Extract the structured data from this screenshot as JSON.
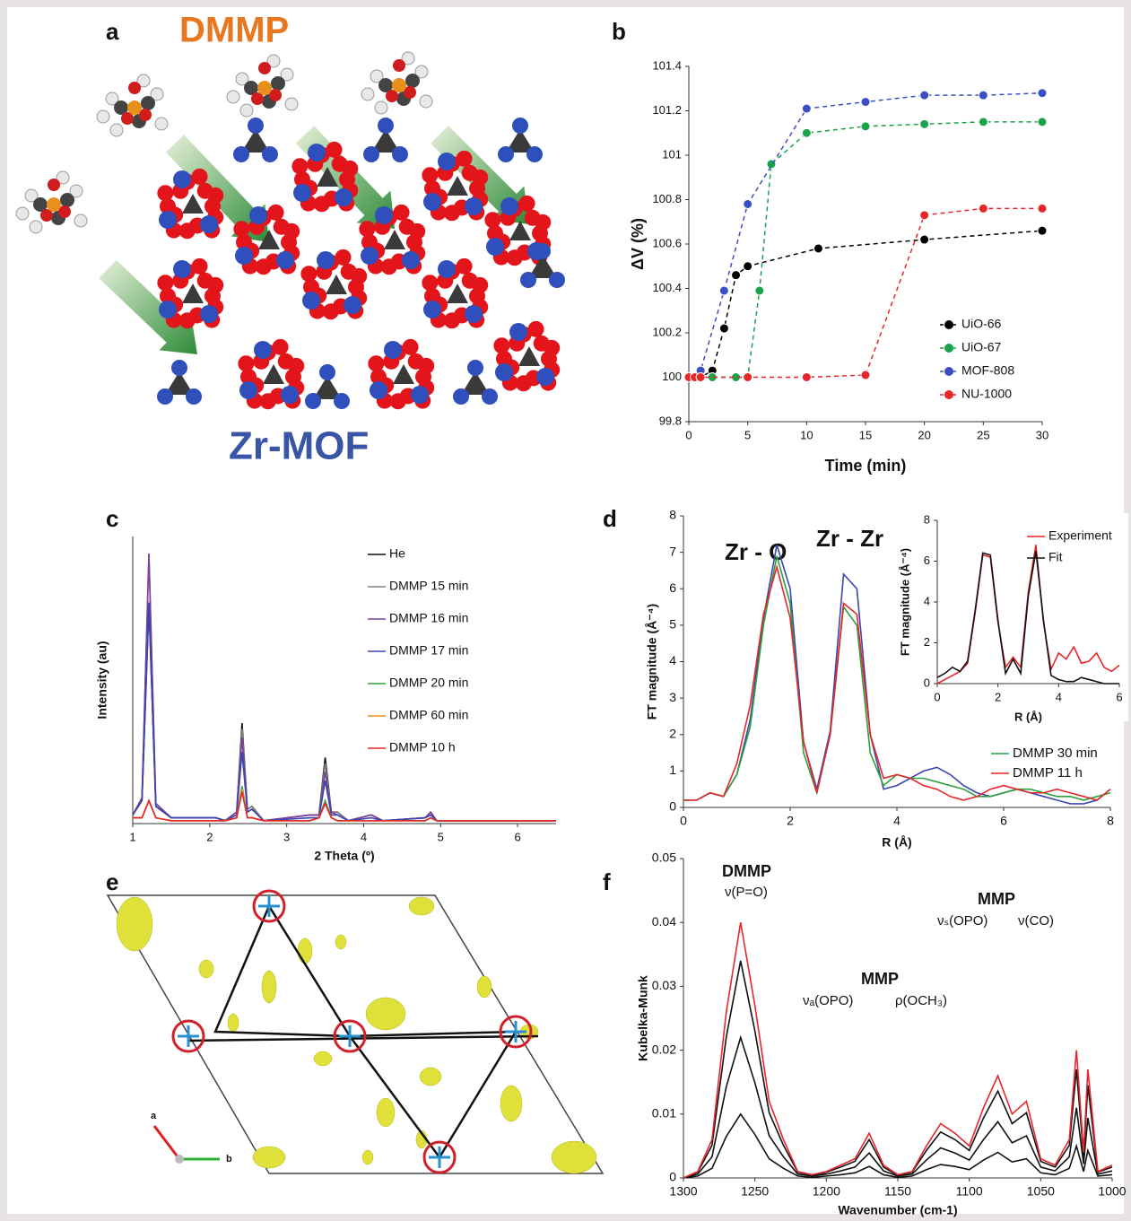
{
  "figure": {
    "a": {
      "label": "a",
      "molecule": "DMMP",
      "framework": "Zr-MOF"
    },
    "e": {
      "label": "e",
      "axis_a": "a",
      "axis_b": "b"
    }
  },
  "chart_data": [
    {
      "type": "line",
      "panel": "b",
      "xlabel": "Time (min)",
      "ylabel": "ΔV (%)",
      "markers": true,
      "dashed": true,
      "legend": "bottom-right",
      "xlim": [
        0,
        30
      ],
      "xticks": [
        0,
        5,
        10,
        15,
        20,
        25,
        30
      ],
      "ylim": [
        99.8,
        101.4
      ],
      "yticks": [
        99.8,
        100,
        100.2,
        100.4,
        100.6,
        100.8,
        101,
        101.2,
        101.4
      ],
      "series": [
        {
          "name": "UiO-66",
          "color": "#000000",
          "x": [
            0,
            1,
            2,
            3,
            4,
            5,
            11,
            20,
            30
          ],
          "values": [
            100,
            100,
            100.03,
            100.22,
            100.46,
            100.5,
            100.58,
            100.62,
            100.66
          ]
        },
        {
          "name": "UiO-67",
          "color": "#1aa34a",
          "x": [
            0,
            2,
            4,
            5,
            6,
            7,
            10,
            15,
            20,
            25,
            30
          ],
          "values": [
            100,
            100,
            100,
            100,
            100.39,
            100.96,
            101.1,
            101.13,
            101.14,
            101.15,
            101.15
          ]
        },
        {
          "name": "MOF-808",
          "color": "#3b4fc4",
          "x": [
            0,
            1,
            3,
            5,
            10,
            15,
            20,
            25,
            30
          ],
          "values": [
            100,
            100.03,
            100.39,
            100.78,
            101.21,
            101.24,
            101.27,
            101.27,
            101.28
          ]
        },
        {
          "name": "NU-1000",
          "color": "#e8262a",
          "x": [
            0,
            0.5,
            1,
            5,
            10,
            15,
            20,
            25,
            30
          ],
          "values": [
            100,
            100,
            100,
            100,
            100,
            100.01,
            100.73,
            100.76,
            100.76
          ]
        }
      ]
    },
    {
      "type": "line",
      "panel": "c",
      "xlabel": "2 Theta (º)",
      "ylabel": "Intensity (au)",
      "legend": "top-right",
      "xlim": [
        1,
        6.5
      ],
      "xticks": [
        1,
        2,
        3,
        4,
        5,
        6
      ],
      "ylim": [
        0,
        100
      ],
      "x": [
        1,
        1.12,
        1.21,
        1.3,
        1.5,
        2.08,
        2.2,
        2.35,
        2.42,
        2.49,
        2.55,
        2.7,
        3.3,
        3.42,
        3.5,
        3.58,
        3.66,
        3.8,
        4.1,
        4.25,
        4.8,
        4.87,
        4.95,
        5.5,
        6.5
      ],
      "series": [
        {
          "name": "He",
          "color": "#111111",
          "values": [
            3,
            8,
            76,
            6,
            2,
            2,
            1,
            4,
            35,
            5,
            6,
            1,
            3,
            3,
            23,
            4,
            4,
            1,
            3,
            1,
            2,
            4,
            1,
            1,
            1
          ]
        },
        {
          "name": "DMMP 15 min",
          "color": "#7f7f7f",
          "values": [
            3,
            9,
            94,
            7,
            2,
            2,
            1,
            4,
            33,
            5,
            6,
            1,
            3,
            3,
            21,
            4,
            4,
            1,
            3,
            1,
            2,
            4,
            1,
            1,
            1
          ]
        },
        {
          "name": "DMMP 16 min",
          "color": "#7b3f9e",
          "values": [
            3,
            9,
            94,
            7,
            2,
            2,
            1,
            4,
            30,
            4,
            5,
            1,
            3,
            3,
            18,
            4,
            3,
            1,
            3,
            1,
            2,
            4,
            1,
            1,
            1
          ]
        },
        {
          "name": "DMMP 17 min",
          "color": "#3a46b0",
          "values": [
            3,
            8,
            77,
            6,
            2,
            2,
            1,
            3,
            25,
            4,
            5,
            1,
            2,
            2,
            15,
            3,
            3,
            1,
            2,
            1,
            2,
            3,
            1,
            1,
            1
          ]
        },
        {
          "name": "DMMP 20 min",
          "color": "#2ca03c",
          "values": [
            2,
            2,
            8,
            2,
            1,
            1,
            1,
            2,
            13,
            2,
            2,
            1,
            1,
            2,
            8,
            2,
            1,
            1,
            1,
            1,
            1,
            2,
            1,
            1,
            1
          ]
        },
        {
          "name": "DMMP 60 min",
          "color": "#f28e1c",
          "values": [
            2,
            2,
            8,
            2,
            1,
            1,
            1,
            2,
            12,
            2,
            2,
            1,
            1,
            2,
            7,
            2,
            1,
            1,
            1,
            1,
            1,
            2,
            1,
            1,
            1
          ]
        },
        {
          "name": "DMMP 10 h",
          "color": "#e8262a",
          "values": [
            2,
            2,
            8,
            2,
            1,
            1,
            1,
            2,
            11,
            2,
            2,
            1,
            1,
            2,
            7,
            2,
            1,
            1,
            1,
            1,
            1,
            2,
            1,
            1,
            1
          ]
        }
      ]
    },
    {
      "type": "line",
      "panel": "d",
      "xlabel": "R (Å)",
      "ylabel": "FT magnitude (Å⁻⁴)",
      "legend": "bottom-right",
      "annotations": [
        "Zr - O",
        "Zr - Zr"
      ],
      "xlim": [
        0,
        8
      ],
      "xticks": [
        0,
        2,
        4,
        6,
        8
      ],
      "ylim": [
        0,
        8
      ],
      "yticks": [
        0,
        1,
        2,
        3,
        4,
        5,
        6,
        7,
        8
      ],
      "x": [
        0,
        0.25,
        0.5,
        0.75,
        1,
        1.25,
        1.5,
        1.75,
        2,
        2.25,
        2.5,
        2.75,
        3,
        3.25,
        3.5,
        3.75,
        4,
        4.25,
        4.5,
        4.75,
        5,
        5.25,
        5.5,
        5.75,
        6,
        6.25,
        6.5,
        6.75,
        7,
        7.25,
        7.5,
        7.75,
        8
      ],
      "series": [
        {
          "color": "#3a46b0",
          "values": [
            0.2,
            0.2,
            0.4,
            0.3,
            0.9,
            2.4,
            5.2,
            7.2,
            6.0,
            1.8,
            0.5,
            2.1,
            6.4,
            6.0,
            2.0,
            0.5,
            0.6,
            0.8,
            1.0,
            1.1,
            0.9,
            0.6,
            0.4,
            0.3,
            0.4,
            0.5,
            0.4,
            0.3,
            0.2,
            0.1,
            0.1,
            0.2,
            0.5
          ]
        },
        {
          "name": "DMMP 30 min",
          "color": "#2ca03c",
          "values": [
            0.2,
            0.2,
            0.4,
            0.3,
            0.9,
            2.2,
            5.0,
            6.9,
            5.6,
            1.5,
            0.4,
            2.0,
            5.5,
            5.0,
            1.5,
            0.6,
            0.9,
            0.8,
            0.8,
            0.7,
            0.6,
            0.5,
            0.3,
            0.3,
            0.4,
            0.5,
            0.5,
            0.4,
            0.3,
            0.3,
            0.2,
            0.3,
            0.4
          ]
        },
        {
          "name": "DMMP 11 h",
          "color": "#e8262a",
          "values": [
            0.2,
            0.2,
            0.4,
            0.3,
            1.2,
            2.8,
            5.3,
            6.6,
            5.2,
            1.8,
            0.4,
            2.0,
            5.6,
            5.3,
            2.0,
            0.8,
            0.9,
            0.8,
            0.6,
            0.5,
            0.3,
            0.2,
            0.3,
            0.5,
            0.6,
            0.5,
            0.4,
            0.4,
            0.5,
            0.4,
            0.3,
            0.2,
            0.5
          ]
        }
      ]
    },
    {
      "type": "line",
      "xlabel": "R (Å)",
      "ylabel": "FT magnitude (Å⁻⁴)",
      "legend": "top-right",
      "xlim": [
        0,
        6
      ],
      "xticks": [
        0,
        2,
        4,
        6
      ],
      "ylim": [
        0,
        8
      ],
      "yticks": [
        0,
        2,
        4,
        6,
        8
      ],
      "x": [
        0,
        0.25,
        0.5,
        0.75,
        1,
        1.25,
        1.5,
        1.75,
        2,
        2.25,
        2.5,
        2.75,
        3,
        3.25,
        3.5,
        3.75,
        4,
        4.25,
        4.5,
        4.75,
        5,
        5.25,
        5.5,
        5.75,
        6
      ],
      "series": [
        {
          "name": "Experiment",
          "color": "#e8262a",
          "values": [
            0,
            0.2,
            0.4,
            0.6,
            1.0,
            3.5,
            6.3,
            6.2,
            3.0,
            0.8,
            1.3,
            0.8,
            4.5,
            6.8,
            3.0,
            0.7,
            1.5,
            1.2,
            1.8,
            1.0,
            1.1,
            1.5,
            0.8,
            0.6,
            0.9
          ]
        },
        {
          "name": "Fit",
          "color": "#111111",
          "values": [
            0.3,
            0.5,
            0.8,
            0.6,
            1.1,
            3.6,
            6.4,
            6.3,
            3.1,
            0.5,
            1.2,
            0.5,
            4.3,
            6.5,
            3.1,
            0.4,
            0.2,
            0.1,
            0.1,
            0.3,
            0.2,
            0.1,
            0,
            0,
            0
          ]
        }
      ]
    },
    {
      "type": "line",
      "panel": "f",
      "xlabel": "Wavenumber (cm-1)",
      "ylabel": "Kubelka-Munk",
      "annotations": [
        "DMMP",
        "ν(P=O)",
        "MMP",
        "νₐ(OPO)",
        "ρ(OCH₃)",
        "MMP",
        "νₛ(OPO)",
        "ν(CO)"
      ],
      "xlim": [
        1300,
        1000
      ],
      "xticks": [
        1300,
        1250,
        1200,
        1150,
        1100,
        1050,
        1000
      ],
      "ylim": [
        0,
        0.05
      ],
      "yticks": [
        0,
        0.01,
        0.02,
        0.03,
        0.04,
        0.05
      ],
      "x": [
        1300,
        1290,
        1280,
        1270,
        1260,
        1250,
        1240,
        1230,
        1220,
        1210,
        1200,
        1190,
        1180,
        1170,
        1160,
        1150,
        1140,
        1130,
        1120,
        1110,
        1100,
        1090,
        1080,
        1070,
        1060,
        1050,
        1040,
        1030,
        1025,
        1020,
        1017,
        1010,
        1000
      ],
      "series": [
        {
          "color": "#111111",
          "values": [
            0,
            0.0003,
            0.0015,
            0.0065,
            0.01,
            0.0068,
            0.003,
            0.0015,
            0.0003,
            0.0001,
            0.0003,
            0.0005,
            0.0008,
            0.0018,
            0.0005,
            0.0001,
            0.0003,
            0.0013,
            0.0021,
            0.0018,
            0.0013,
            0.0028,
            0.004,
            0.0025,
            0.003,
            0.0008,
            0.0005,
            0.0015,
            0.005,
            0.001,
            0.0043,
            0.0003,
            0.0005
          ]
        },
        {
          "color": "#111111",
          "values": [
            0,
            0.0006,
            0.0033,
            0.0143,
            0.022,
            0.0149,
            0.0066,
            0.0033,
            0.0006,
            0.0003,
            0.0006,
            0.0011,
            0.0017,
            0.0039,
            0.0011,
            0.0003,
            0.0006,
            0.0028,
            0.0047,
            0.0039,
            0.0028,
            0.006,
            0.0088,
            0.0055,
            0.0066,
            0.0017,
            0.0011,
            0.0033,
            0.011,
            0.0022,
            0.0094,
            0.0006,
            0.0011
          ]
        },
        {
          "color": "#111111",
          "values": [
            0,
            0.0009,
            0.0051,
            0.0221,
            0.034,
            0.023,
            0.0102,
            0.0051,
            0.0009,
            0.0004,
            0.0009,
            0.0017,
            0.0026,
            0.006,
            0.0017,
            0.0004,
            0.0009,
            0.0043,
            0.0072,
            0.006,
            0.0043,
            0.0094,
            0.0136,
            0.0085,
            0.0102,
            0.0026,
            0.0017,
            0.0051,
            0.017,
            0.0034,
            0.0145,
            0.0009,
            0.0017
          ]
        },
        {
          "color": "#e8262a",
          "values": [
            0,
            0.001,
            0.006,
            0.026,
            0.04,
            0.027,
            0.012,
            0.006,
            0.001,
            0.0005,
            0.001,
            0.002,
            0.003,
            0.007,
            0.002,
            0.0005,
            0.001,
            0.005,
            0.0085,
            0.007,
            0.005,
            0.011,
            0.016,
            0.01,
            0.012,
            0.003,
            0.002,
            0.006,
            0.02,
            0.004,
            0.017,
            0.001,
            0.002
          ]
        }
      ]
    }
  ]
}
